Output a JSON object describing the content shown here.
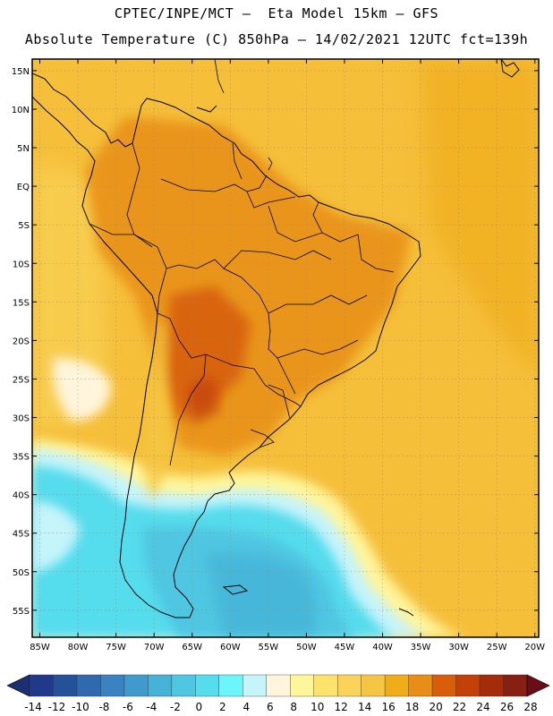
{
  "title_line1": "CPTEC/INPE/MCT —  Eta Model 15km — GFS",
  "title_line2": "Absolute Temperature (C) 850hPa — 14/02/2021 12UTC fct=139h",
  "lat_labels": [
    "15N",
    "10N",
    "5N",
    "EQ",
    "5S",
    "10S",
    "15S",
    "20S",
    "25S",
    "30S",
    "35S",
    "40S",
    "45S",
    "50S",
    "55S"
  ],
  "lat_values": [
    15,
    10,
    5,
    0,
    -5,
    -10,
    -15,
    -20,
    -25,
    -30,
    -35,
    -40,
    -45,
    -50,
    -55
  ],
  "lon_labels": [
    "85W",
    "80W",
    "75W",
    "70W",
    "65W",
    "60W",
    "55W",
    "50W",
    "45W",
    "40W",
    "35W",
    "30W",
    "25W",
    "20W"
  ],
  "lon_values": [
    -85,
    -80,
    -75,
    -70,
    -65,
    -60,
    -55,
    -50,
    -45,
    -40,
    -35,
    -30,
    -25,
    -20
  ],
  "colorbar": {
    "labels": [
      "-14",
      "-12",
      "-10",
      "-8",
      "-6",
      "-4",
      "-2",
      "0",
      "2",
      "4",
      "6",
      "8",
      "10",
      "12",
      "14",
      "16",
      "18",
      "20",
      "22",
      "24",
      "26",
      "28"
    ],
    "colors": [
      "#1f3a8a",
      "#25509a",
      "#2f69ae",
      "#3a82c0",
      "#409bcc",
      "#45b2d6",
      "#4fc6e2",
      "#55dced",
      "#6cf6fb",
      "#c6f4fb",
      "#fff5dc",
      "#fff59a",
      "#fde36c",
      "#fad45a",
      "#f5c643",
      "#f0ad1a",
      "#e88e17",
      "#d85e0a",
      "#c34109",
      "#a52c0b",
      "#862011"
    ],
    "low_color": "#1c2f70",
    "high_color": "#6b0d16"
  },
  "map": {
    "ocean_base": "#f5bf3a",
    "coast_color": "#000000"
  }
}
